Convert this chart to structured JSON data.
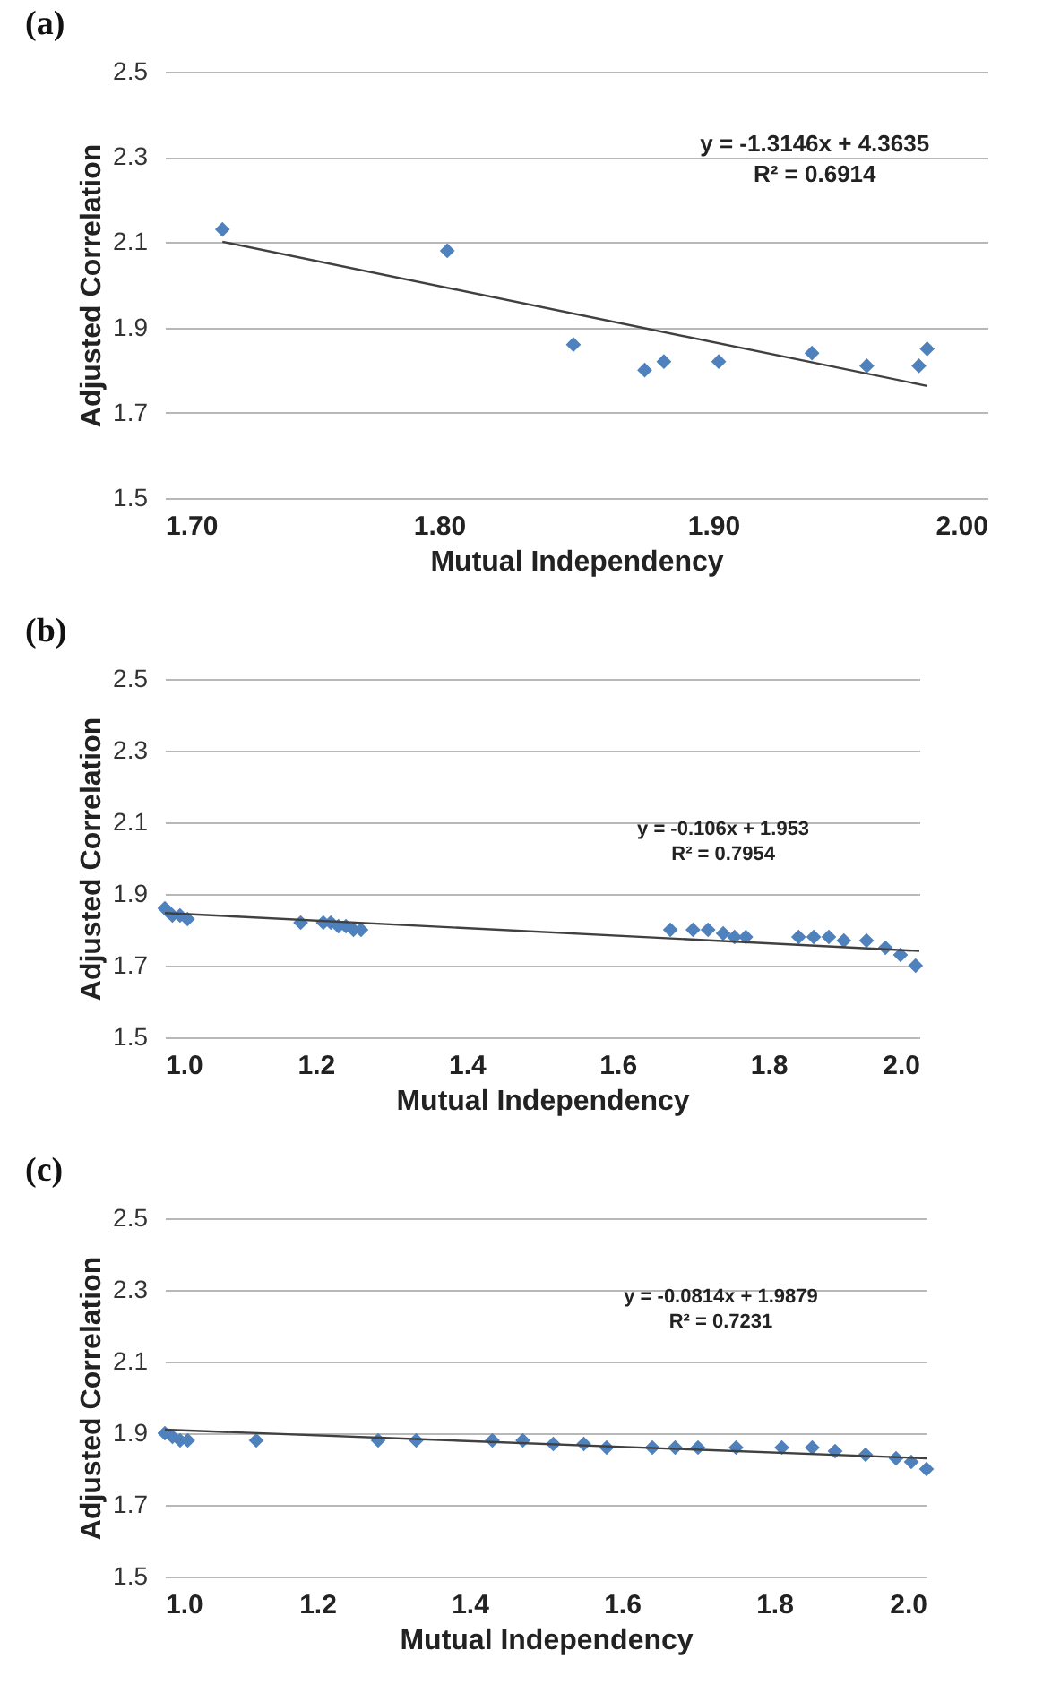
{
  "chart_data": [
    {
      "type": "scatter",
      "title": "(a)",
      "xlabel": "Mutual Independency",
      "ylabel": "Adjusted Correlation",
      "xlim": [
        1.7,
        2
      ],
      "xticks": [
        {
          "value": 1.7,
          "label": "1.70"
        },
        {
          "value": 1.8,
          "label": "1.80"
        },
        {
          "value": 1.9,
          "label": "1.90"
        },
        {
          "value": 2,
          "label": "2.00"
        }
      ],
      "ylim": [
        1.5,
        2.5
      ],
      "yticks": [
        1.5,
        1.7,
        1.9,
        2.1,
        2.3,
        2.5
      ],
      "grid": "y",
      "legend": false,
      "annotations": [
        "y = -1.3146x + 4.3635",
        "R² = 0.6914"
      ],
      "series": [
        {
          "marker": "diamond",
          "color": "#4f81bd",
          "x": [
            1.721,
            1.803,
            1.849,
            1.875,
            1.882,
            1.902,
            1.936,
            1.956,
            1.975,
            1.978
          ],
          "values": [
            2.13,
            2.08,
            1.86,
            1.8,
            1.82,
            1.82,
            1.84,
            1.81,
            1.81,
            1.85
          ]
        },
        {
          "type": "line",
          "marker": "none",
          "color": "#404040",
          "x": [
            1.721,
            1.978
          ],
          "values": [
            2.101,
            1.763
          ]
        }
      ]
    },
    {
      "type": "scatter",
      "title": "(b)",
      "xlabel": "Mutual Independency",
      "ylabel": "Adjusted Correlation",
      "xlim": [
        1,
        2
      ],
      "xticks": [
        {
          "value": 1,
          "label": "1.0"
        },
        1.2,
        1.4,
        1.6,
        1.8,
        {
          "value": 2,
          "label": "2.0"
        }
      ],
      "ylim": [
        1.5,
        2.5
      ],
      "yticks": [
        1.5,
        1.7,
        1.9,
        2.1,
        2.3,
        2.5
      ],
      "grid": "y",
      "legend": false,
      "annotations": [
        "y = -0.106x + 1.953",
        "R² = 0.7954"
      ],
      "series": [
        {
          "marker": "diamond",
          "color": "#4f81bd",
          "x": [
            1.0,
            1.005,
            1.01,
            1.02,
            1.03,
            1.18,
            1.21,
            1.22,
            1.23,
            1.24,
            1.25,
            1.26,
            1.67,
            1.7,
            1.72,
            1.74,
            1.755,
            1.77,
            1.84,
            1.86,
            1.88,
            1.9,
            1.93,
            1.955,
            1.975,
            1.995
          ],
          "values": [
            1.86,
            1.85,
            1.84,
            1.84,
            1.83,
            1.82,
            1.82,
            1.82,
            1.81,
            1.81,
            1.8,
            1.8,
            1.8,
            1.8,
            1.8,
            1.79,
            1.78,
            1.78,
            1.78,
            1.78,
            1.78,
            1.77,
            1.77,
            1.75,
            1.73,
            1.7
          ]
        },
        {
          "type": "line",
          "marker": "none",
          "color": "#404040",
          "x": [
            1,
            2
          ],
          "values": [
            1.847,
            1.741
          ]
        }
      ]
    },
    {
      "type": "scatter",
      "title": "(c)",
      "xlabel": "Mutual Independency",
      "ylabel": "Adjusted Correlation",
      "xlim": [
        1,
        2
      ],
      "xticks": [
        {
          "value": 1,
          "label": "1.0"
        },
        1.2,
        1.4,
        1.6,
        1.8,
        {
          "value": 2,
          "label": "2.0"
        }
      ],
      "ylim": [
        1.5,
        2.5
      ],
      "yticks": [
        1.5,
        1.7,
        1.9,
        2.1,
        2.3,
        2.5
      ],
      "grid": "y",
      "legend": false,
      "annotations": [
        "y = -0.0814x + 1.9879",
        "R² = 0.7231"
      ],
      "series": [
        {
          "marker": "diamond",
          "color": "#4f81bd",
          "x": [
            1.0,
            1.01,
            1.02,
            1.03,
            1.12,
            1.28,
            1.33,
            1.43,
            1.47,
            1.51,
            1.55,
            1.58,
            1.64,
            1.67,
            1.7,
            1.75,
            1.81,
            1.85,
            1.88,
            1.92,
            1.96,
            1.98,
            2.0
          ],
          "values": [
            1.9,
            1.89,
            1.88,
            1.88,
            1.88,
            1.88,
            1.88,
            1.88,
            1.88,
            1.87,
            1.87,
            1.86,
            1.86,
            1.86,
            1.86,
            1.86,
            1.86,
            1.86,
            1.85,
            1.84,
            1.83,
            1.82,
            1.8
          ]
        },
        {
          "type": "line",
          "marker": "none",
          "color": "#404040",
          "x": [
            1,
            2
          ],
          "values": [
            1.91,
            1.83
          ]
        }
      ]
    }
  ]
}
